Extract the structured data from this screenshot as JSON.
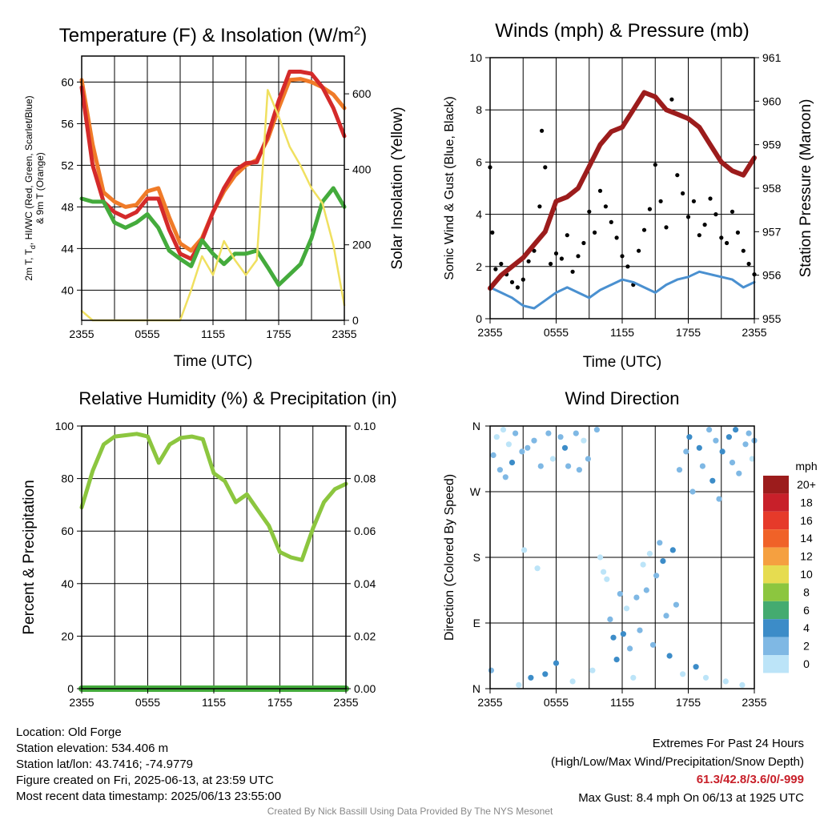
{
  "chart_data": [
    {
      "type": "line",
      "title_main": "Temperature (F) & Insolation (W/m",
      "title_sup": "2",
      "title_end": ")",
      "xlabel": "Time (UTC)",
      "ylabel_line1": "2m T, T",
      "ylabel_sub": "d",
      "ylabel_line1_end": ", HI/WC (Red, Green, Scarlet/Blue)",
      "ylabel_line2": "& 9m T (Orange)",
      "y2label": "Solar Insolation (Yellow)",
      "x_ticks": [
        "2355",
        "0555",
        "1155",
        "1755",
        "2355"
      ],
      "y_ticks": [
        "40",
        "44",
        "48",
        "52",
        "56",
        "60"
      ],
      "y2_ticks": [
        "0",
        "200",
        "400",
        "600"
      ],
      "ylim": [
        37.1,
        62.5
      ],
      "y2lim": [
        0,
        700
      ],
      "x": [
        0,
        1,
        2,
        3,
        4,
        5,
        6,
        7,
        8,
        9,
        10,
        11,
        12,
        13,
        14,
        15,
        16,
        17,
        18,
        19,
        20,
        21,
        22,
        23,
        24
      ],
      "series": [
        {
          "color": "#f07b28",
          "values": [
            60.2,
            54,
            49.4,
            48.5,
            48,
            48.2,
            49.5,
            49.8,
            47,
            44.5,
            43.8,
            45,
            47.5,
            49.5,
            51,
            52,
            52.5,
            54.5,
            57.5,
            60.2,
            60.3,
            60,
            59.5,
            58.8,
            57.5
          ]
        },
        {
          "color": "#d42a2a",
          "values": [
            59.5,
            52,
            48.5,
            47.5,
            47,
            47.5,
            48.8,
            48.8,
            45.8,
            43.5,
            43,
            44.8,
            47.5,
            49.8,
            51.5,
            52.2,
            52.3,
            54.8,
            58.2,
            61,
            61,
            60.8,
            59.5,
            57.5,
            54.8
          ]
        },
        {
          "color": "#44ab3c",
          "values": [
            48.8,
            48.5,
            48.5,
            46.5,
            46,
            46.5,
            47.3,
            46,
            43.8,
            43,
            42.3,
            44.8,
            43.5,
            42.5,
            43.5,
            43.5,
            43.8,
            42.2,
            40.5,
            41.5,
            42.5,
            45,
            48.5,
            49.8,
            48
          ]
        },
        {
          "color": "#f0e060",
          "y_axis": "right",
          "values": [
            25,
            0,
            0,
            0,
            0,
            0,
            0,
            0,
            0,
            0,
            80,
            170,
            120,
            210,
            160,
            120,
            160,
            610,
            540,
            460,
            410,
            350,
            310,
            200,
            40
          ]
        }
      ]
    },
    {
      "type": "line",
      "title": "Winds (mph) & Pressure (mb)",
      "xlabel": "Time (UTC)",
      "ylabel": "Sonic Wind & Gust (Blue, Black)",
      "y2label": "Station Pressure (Maroon)",
      "x_ticks": [
        "2355",
        "0555",
        "1155",
        "1755",
        "2355"
      ],
      "y_ticks": [
        "0",
        "2",
        "4",
        "6",
        "8",
        "10"
      ],
      "y2_ticks": [
        "955",
        "956",
        "957",
        "958",
        "959",
        "960",
        "961"
      ],
      "ylim": [
        0,
        10
      ],
      "y2lim": [
        955,
        961
      ],
      "x": [
        0,
        1,
        2,
        3,
        4,
        5,
        6,
        7,
        8,
        9,
        10,
        11,
        12,
        13,
        14,
        15,
        16,
        17,
        18,
        19,
        20,
        21,
        22,
        23,
        24
      ],
      "series": [
        {
          "color": "#4a90d0",
          "values": [
            1.2,
            1.0,
            0.8,
            0.5,
            0.4,
            0.7,
            1.0,
            1.2,
            1.0,
            0.8,
            1.1,
            1.3,
            1.5,
            1.4,
            1.2,
            1.0,
            1.3,
            1.5,
            1.6,
            1.8,
            1.7,
            1.6,
            1.5,
            1.2,
            1.4
          ]
        },
        {
          "color": "#9c1c1c",
          "y_axis": "right",
          "values": [
            955.7,
            956.0,
            956.2,
            956.4,
            956.7,
            957.0,
            957.7,
            957.8,
            958.0,
            958.5,
            959.0,
            959.3,
            959.4,
            959.8,
            960.2,
            960.1,
            959.8,
            959.7,
            959.6,
            959.4,
            959.0,
            958.6,
            958.4,
            958.3,
            958.7
          ]
        }
      ],
      "gust_points": [
        {
          "x": 0,
          "y": 5.8
        },
        {
          "x": 0.2,
          "y": 3.3
        },
        {
          "x": 0.5,
          "y": 1.9
        },
        {
          "x": 1,
          "y": 2.1
        },
        {
          "x": 1.5,
          "y": 1.7
        },
        {
          "x": 2,
          "y": 1.4
        },
        {
          "x": 2.5,
          "y": 1.2
        },
        {
          "x": 3,
          "y": 1.5
        },
        {
          "x": 3.5,
          "y": 2.2
        },
        {
          "x": 4,
          "y": 2.6
        },
        {
          "x": 4.5,
          "y": 4.3
        },
        {
          "x": 4.7,
          "y": 7.2
        },
        {
          "x": 5,
          "y": 5.8
        },
        {
          "x": 5.5,
          "y": 2.1
        },
        {
          "x": 6,
          "y": 2.5
        },
        {
          "x": 6.5,
          "y": 2.3
        },
        {
          "x": 7,
          "y": 3.2
        },
        {
          "x": 7.5,
          "y": 1.8
        },
        {
          "x": 8,
          "y": 2.4
        },
        {
          "x": 8.5,
          "y": 2.9
        },
        {
          "x": 9,
          "y": 4.1
        },
        {
          "x": 9.5,
          "y": 3.3
        },
        {
          "x": 10,
          "y": 4.9
        },
        {
          "x": 10.5,
          "y": 4.3
        },
        {
          "x": 11,
          "y": 3.7
        },
        {
          "x": 11.5,
          "y": 3.1
        },
        {
          "x": 12,
          "y": 2.4
        },
        {
          "x": 12.5,
          "y": 2.0
        },
        {
          "x": 13,
          "y": 1.3
        },
        {
          "x": 13.5,
          "y": 2.6
        },
        {
          "x": 14,
          "y": 3.4
        },
        {
          "x": 14.5,
          "y": 4.2
        },
        {
          "x": 15,
          "y": 5.9
        },
        {
          "x": 15.5,
          "y": 4.5
        },
        {
          "x": 16,
          "y": 3.5
        },
        {
          "x": 16.5,
          "y": 8.4
        },
        {
          "x": 17,
          "y": 5.5
        },
        {
          "x": 17.5,
          "y": 4.8
        },
        {
          "x": 18,
          "y": 3.9
        },
        {
          "x": 18.5,
          "y": 4.5
        },
        {
          "x": 19,
          "y": 3.2
        },
        {
          "x": 19.5,
          "y": 3.6
        },
        {
          "x": 20,
          "y": 4.6
        },
        {
          "x": 20.5,
          "y": 4.0
        },
        {
          "x": 21,
          "y": 3.1
        },
        {
          "x": 21.5,
          "y": 2.9
        },
        {
          "x": 22,
          "y": 4.1
        },
        {
          "x": 22.5,
          "y": 3.3
        },
        {
          "x": 23,
          "y": 2.6
        },
        {
          "x": 23.5,
          "y": 2.1
        },
        {
          "x": 24,
          "y": 1.7
        }
      ]
    },
    {
      "type": "line",
      "title": "Relative Humidity (%) & Precipitation (in)",
      "ylabel": "Percent & Precipitation",
      "x_ticks": [
        "2355",
        "0555",
        "1155",
        "1755",
        "2355"
      ],
      "y_ticks": [
        "0",
        "20",
        "40",
        "60",
        "80",
        "100"
      ],
      "y2_ticks": [
        "0.00",
        "0.02",
        "0.04",
        "0.06",
        "0.08",
        "0.10"
      ],
      "ylim": [
        0,
        100
      ],
      "y2lim": [
        0,
        0.1
      ],
      "x": [
        0,
        1,
        2,
        3,
        4,
        5,
        6,
        7,
        8,
        9,
        10,
        11,
        12,
        13,
        14,
        15,
        16,
        17,
        18,
        19,
        20,
        21,
        22,
        23,
        24
      ],
      "series": [
        {
          "color": "#8cc63f",
          "values": [
            69,
            83,
            93,
            96,
            96.5,
            97,
            96,
            86,
            93,
            95.5,
            96,
            95,
            82,
            79,
            71,
            74,
            68,
            62,
            52,
            50,
            49,
            61,
            71,
            76,
            78
          ]
        },
        {
          "color": "#44ab3c",
          "y_axis": "right",
          "values": [
            0,
            0,
            0,
            0,
            0,
            0,
            0,
            0,
            0,
            0,
            0,
            0,
            0,
            0,
            0,
            0,
            0,
            0,
            0,
            0,
            0,
            0,
            0,
            0,
            0
          ]
        }
      ]
    },
    {
      "type": "scatter",
      "title": "Wind Direction",
      "ylabel": "Direction (Colored By Speed)",
      "x_ticks": [
        "2355",
        "0555",
        "1155",
        "1755",
        "2355"
      ],
      "y_ticks": [
        "N",
        "E",
        "S",
        "W",
        "N"
      ],
      "ylim": [
        0,
        360
      ],
      "legend_title": "mph",
      "legend_labels": [
        "20+",
        "18",
        "16",
        "14",
        "12",
        "10",
        "8",
        "6",
        "4",
        "2",
        "0"
      ],
      "legend_colors": [
        "#9c1c1c",
        "#c8202a",
        "#e63a2a",
        "#f06228",
        "#f5a040",
        "#e6dc50",
        "#8cc63f",
        "#44ab70",
        "#3c8cc8",
        "#7fb8e4",
        "#bce4f8"
      ],
      "points": [
        {
          "x": 0.1,
          "y": 25,
          "s": 1
        },
        {
          "x": 0.3,
          "y": 320,
          "s": 1
        },
        {
          "x": 0.6,
          "y": 345,
          "s": 0
        },
        {
          "x": 0.9,
          "y": 300,
          "s": 1
        },
        {
          "x": 1.2,
          "y": 355,
          "s": 0
        },
        {
          "x": 1.4,
          "y": 290,
          "s": 1
        },
        {
          "x": 1.7,
          "y": 335,
          "s": 0
        },
        {
          "x": 2.0,
          "y": 310,
          "s": 2
        },
        {
          "x": 2.3,
          "y": 350,
          "s": 1
        },
        {
          "x": 2.6,
          "y": 5,
          "s": 0
        },
        {
          "x": 2.9,
          "y": 325,
          "s": 1
        },
        {
          "x": 3.1,
          "y": 190,
          "s": 0
        },
        {
          "x": 3.4,
          "y": 330,
          "s": 1
        },
        {
          "x": 3.7,
          "y": 15,
          "s": 2
        },
        {
          "x": 4.0,
          "y": 340,
          "s": 1
        },
        {
          "x": 4.3,
          "y": 165,
          "s": 0
        },
        {
          "x": 4.6,
          "y": 305,
          "s": 1
        },
        {
          "x": 5.0,
          "y": 20,
          "s": 2
        },
        {
          "x": 5.3,
          "y": 350,
          "s": 1
        },
        {
          "x": 5.7,
          "y": 315,
          "s": 0
        },
        {
          "x": 6.0,
          "y": 35,
          "s": 2
        },
        {
          "x": 6.4,
          "y": 345,
          "s": 1
        },
        {
          "x": 6.8,
          "y": 330,
          "s": 2
        },
        {
          "x": 7.1,
          "y": 305,
          "s": 1
        },
        {
          "x": 7.5,
          "y": 10,
          "s": 0
        },
        {
          "x": 7.8,
          "y": 350,
          "s": 1
        },
        {
          "x": 8.1,
          "y": 300,
          "s": 1
        },
        {
          "x": 8.5,
          "y": 340,
          "s": 0
        },
        {
          "x": 8.9,
          "y": 315,
          "s": 1
        },
        {
          "x": 9.3,
          "y": 25,
          "s": 0
        },
        {
          "x": 9.7,
          "y": 355,
          "s": 1
        },
        {
          "x": 10.0,
          "y": 180,
          "s": 0
        },
        {
          "x": 10.3,
          "y": 160,
          "s": 0
        },
        {
          "x": 10.6,
          "y": 150,
          "s": 0
        },
        {
          "x": 10.9,
          "y": 95,
          "s": 1
        },
        {
          "x": 11.2,
          "y": 70,
          "s": 2
        },
        {
          "x": 11.5,
          "y": 40,
          "s": 2
        },
        {
          "x": 11.8,
          "y": 130,
          "s": 1
        },
        {
          "x": 12.1,
          "y": 75,
          "s": 2
        },
        {
          "x": 12.4,
          "y": 110,
          "s": 0
        },
        {
          "x": 12.7,
          "y": 55,
          "s": 1
        },
        {
          "x": 13.0,
          "y": 15,
          "s": 0
        },
        {
          "x": 13.3,
          "y": 125,
          "s": 1
        },
        {
          "x": 13.6,
          "y": 80,
          "s": 1
        },
        {
          "x": 13.9,
          "y": 170,
          "s": 0
        },
        {
          "x": 14.2,
          "y": 135,
          "s": 1
        },
        {
          "x": 14.5,
          "y": 185,
          "s": 0
        },
        {
          "x": 14.8,
          "y": 60,
          "s": 1
        },
        {
          "x": 15.1,
          "y": 155,
          "s": 1
        },
        {
          "x": 15.4,
          "y": 200,
          "s": 1
        },
        {
          "x": 15.7,
          "y": 175,
          "s": 2
        },
        {
          "x": 16.0,
          "y": 100,
          "s": 1
        },
        {
          "x": 16.3,
          "y": 45,
          "s": 2
        },
        {
          "x": 16.6,
          "y": 190,
          "s": 2
        },
        {
          "x": 16.9,
          "y": 115,
          "s": 1
        },
        {
          "x": 17.2,
          "y": 300,
          "s": 1
        },
        {
          "x": 17.5,
          "y": 20,
          "s": 0
        },
        {
          "x": 17.8,
          "y": 325,
          "s": 1
        },
        {
          "x": 18.1,
          "y": 345,
          "s": 2
        },
        {
          "x": 18.4,
          "y": 270,
          "s": 1
        },
        {
          "x": 18.7,
          "y": 30,
          "s": 2
        },
        {
          "x": 19.0,
          "y": 330,
          "s": 2
        },
        {
          "x": 19.3,
          "y": 305,
          "s": 1
        },
        {
          "x": 19.6,
          "y": 15,
          "s": 0
        },
        {
          "x": 19.9,
          "y": 355,
          "s": 1
        },
        {
          "x": 20.2,
          "y": 285,
          "s": 2
        },
        {
          "x": 20.5,
          "y": 340,
          "s": 1
        },
        {
          "x": 20.8,
          "y": 260,
          "s": 1
        },
        {
          "x": 21.1,
          "y": 325,
          "s": 2
        },
        {
          "x": 21.4,
          "y": 10,
          "s": 0
        },
        {
          "x": 21.7,
          "y": 345,
          "s": 2
        },
        {
          "x": 22.0,
          "y": 310,
          "s": 1
        },
        {
          "x": 22.3,
          "y": 355,
          "s": 2
        },
        {
          "x": 22.6,
          "y": 295,
          "s": 1
        },
        {
          "x": 22.9,
          "y": 5,
          "s": 0
        },
        {
          "x": 23.2,
          "y": 335,
          "s": 1
        },
        {
          "x": 23.5,
          "y": 350,
          "s": 1
        },
        {
          "x": 23.8,
          "y": 315,
          "s": 0
        },
        {
          "x": 24,
          "y": 340,
          "s": 1
        }
      ]
    }
  ],
  "footer": {
    "location": "Location: Old Forge",
    "elevation": "Station elevation: 534.406 m",
    "latlon": "Station lat/lon: 43.7416; -74.9779",
    "created": "Figure created on Fri, 2025-06-13, at 23:59 UTC",
    "recent": "Most recent data timestamp: 2025/06/13 23:55:00",
    "extremes_title": "Extremes For Past 24 Hours",
    "extremes_desc": "(High/Low/Max Wind/Precipitation/Snow Depth)",
    "extremes_values": "61.3/42.8/3.6/0/-999",
    "max_gust": "Max Gust: 8.4 mph On 06/13 at 1925 UTC",
    "credit": "Created By Nick Bassill Using Data Provided By The NYS Mesonet"
  }
}
